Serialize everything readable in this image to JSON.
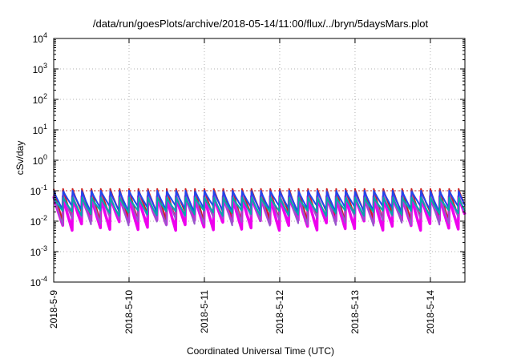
{
  "chart_data": {
    "type": "line",
    "title": "/data/run/goesPlots/archive/2018-05-14/11:00/flux/../bryn/5daysMars.plot",
    "xlabel": "Coordinated Universal Time (UTC)",
    "ylabel": "cSv/day",
    "yscale": "log",
    "ylim": [
      0.0001,
      10000
    ],
    "xlim": [
      "2018-05-09T00:00",
      "2018-05-14T11:00"
    ],
    "grid": true,
    "x_tick_labels": [
      "2018-5-9",
      "2018-5-10",
      "2018-5-11",
      "2018-5-12",
      "2018-5-13",
      "2018-5-14"
    ],
    "y_ticks": [
      {
        "base": "10",
        "exp": "-4"
      },
      {
        "base": "10",
        "exp": "-3"
      },
      {
        "base": "10",
        "exp": "-2"
      },
      {
        "base": "10",
        "exp": "-1"
      },
      {
        "base": "10",
        "exp": "0"
      },
      {
        "base": "10",
        "exp": "1"
      },
      {
        "base": "10",
        "exp": "2"
      },
      {
        "base": "10",
        "exp": "3"
      },
      {
        "base": "10",
        "exp": "4"
      }
    ],
    "reference_line_y": 0.1,
    "cycles_per_day": 8,
    "series": [
      {
        "color": "#ee00ee",
        "peak": 0.065,
        "trough": 0.0045
      },
      {
        "color": "#cc2222",
        "peak": 0.115,
        "trough": 0.009
      },
      {
        "color": "#9955cc",
        "peak": 0.075,
        "trough": 0.0065
      },
      {
        "color": "#2244ee",
        "peak": 0.1,
        "trough": 0.018
      },
      {
        "color": "#00aaaa",
        "peak": 0.06,
        "trough": 0.014
      }
    ]
  }
}
